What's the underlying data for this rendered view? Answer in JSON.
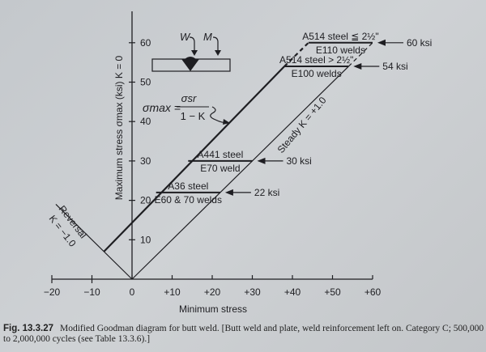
{
  "chart_data": {
    "type": "line",
    "title": "",
    "xlabel": "Minimum stress",
    "ylabel": "Maximum stress σmax (ksi) K = 0",
    "xlim": [
      -20,
      60
    ],
    "ylim": [
      0,
      60
    ],
    "xticks": [
      "−20",
      "−10",
      "0",
      "+10",
      "+20",
      "+30",
      "+40",
      "+50",
      "+60"
    ],
    "xtick_values": [
      -20,
      -10,
      0,
      10,
      20,
      30,
      40,
      50,
      60
    ],
    "yticks": [
      "10",
      "20",
      "30",
      "40",
      "50",
      "60"
    ],
    "ytick_values": [
      10,
      20,
      30,
      40,
      50,
      60
    ],
    "grid": false,
    "series": [
      {
        "label": "Reversal K = −1.0",
        "x": [
          -19,
          0
        ],
        "y": [
          19,
          0
        ]
      },
      {
        "label": "Steady K = +1.0",
        "x": [
          0,
          54
        ],
        "y": [
          0,
          54
        ],
        "dashed_ext": {
          "x": [
            54,
            60
          ],
          "y": [
            54,
            60
          ]
        }
      },
      {
        "label": "σmax = σsr / (1 − K)",
        "x": [
          -7,
          38
        ],
        "y": [
          7,
          54
        ],
        "dashed_ext": {
          "x": [
            38,
            44
          ],
          "y": [
            54,
            60
          ]
        }
      }
    ],
    "caps": [
      {
        "top": "A36 steel",
        "bottom": "E60 & 70 welds",
        "y": 22,
        "x": [
          6,
          22
        ],
        "value": "22 ksi"
      },
      {
        "top": "A441 steel",
        "bottom": "E70 weld",
        "y": 30,
        "x": [
          14,
          30
        ],
        "value": "30 ksi"
      },
      {
        "top": "A514 steel > 2½\"",
        "bottom": "E100 welds",
        "y": 54,
        "x": [
          38,
          54
        ],
        "value": "54 ksi"
      },
      {
        "top": "A514 steel ≦ 2½\"",
        "bottom": "E110 welds",
        "y": 60,
        "x": [
          44,
          60
        ],
        "value": "60 ksi"
      }
    ],
    "annotations": {
      "reversal_line1": "Reversal",
      "reversal_line2": "K = −1.0",
      "steady": "Steady K = +1.0",
      "formula_lhs": "σmax =",
      "formula_num": "σsr",
      "formula_den": "1 − K",
      "load_w": "W",
      "load_m": "M"
    }
  },
  "caption": {
    "fig": "Fig. 13.3.27",
    "text": "Modified Goodman diagram for butt weld. [Butt weld and plate, weld reinforcement left on. Category C; 500,000 to 2,000,000 cycles (see Table 13.3.6).]"
  },
  "colors": {
    "ink": "#1e1e22",
    "paper": "#c9ccd0"
  }
}
